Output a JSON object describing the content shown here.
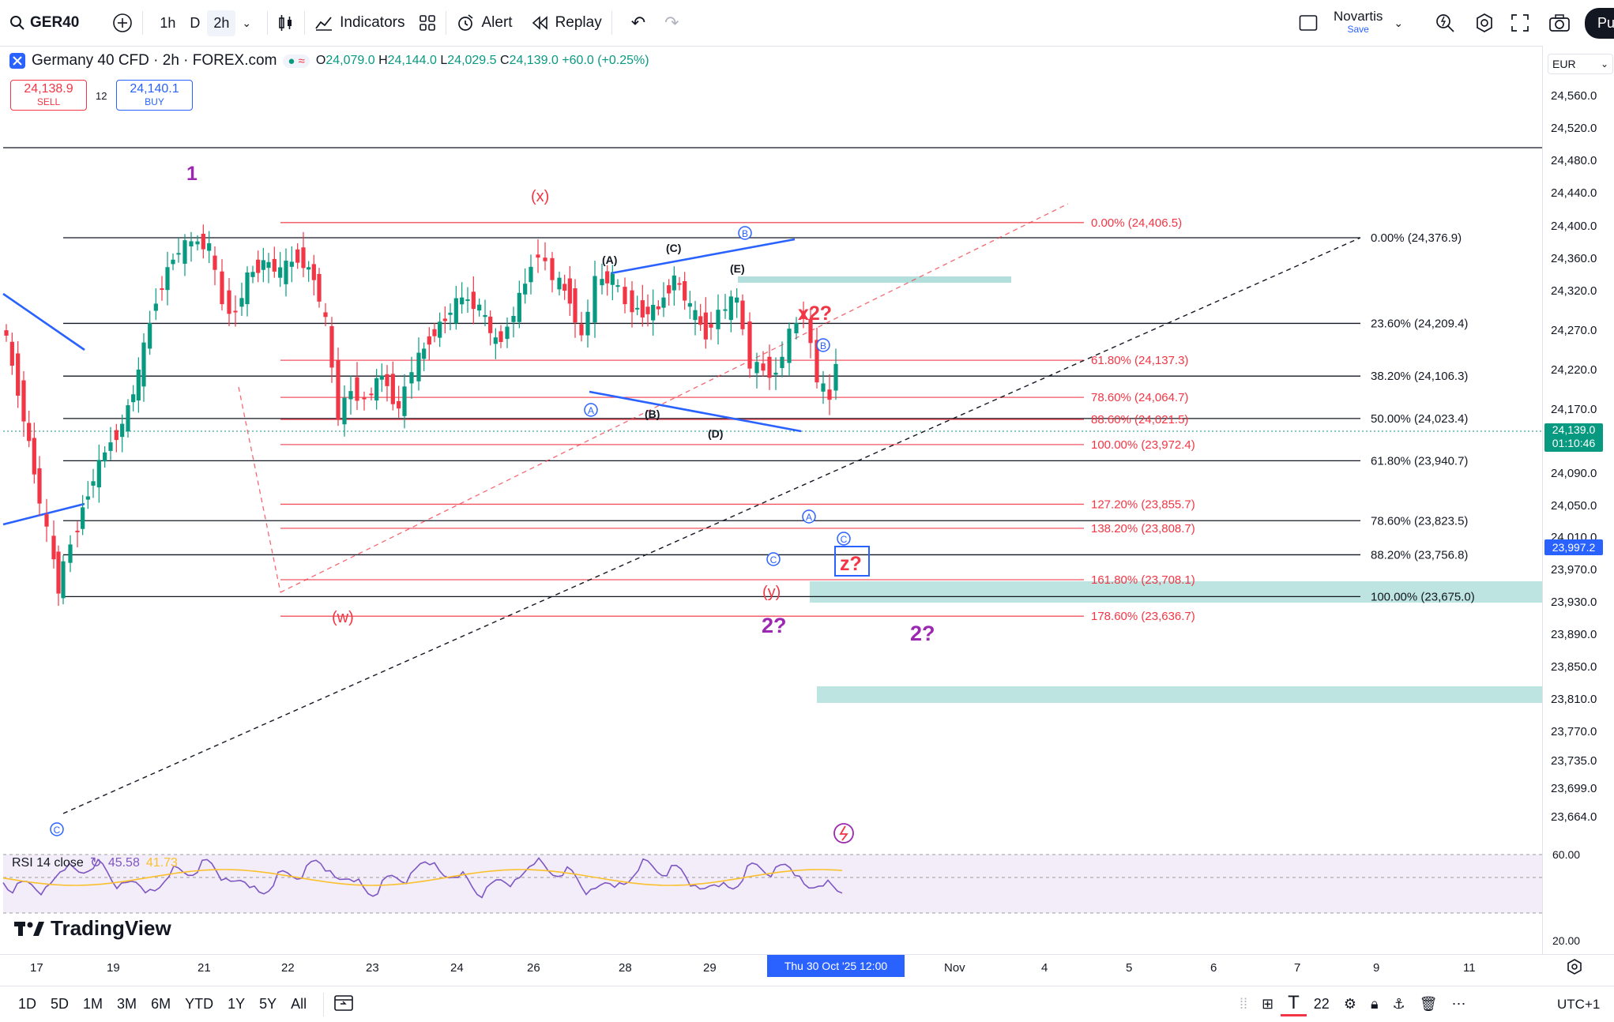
{
  "toolbar": {
    "symbol": "GER40",
    "intervals": [
      "1h",
      "D",
      "2h"
    ],
    "active_interval": "2h",
    "indicators_label": "Indicators",
    "alert_label": "Alert",
    "replay_label": "Replay",
    "layout_name": "Novartis",
    "layout_save": "Save",
    "publish_label": "Pu"
  },
  "legend": {
    "title": "Germany 40 CFD · 2h · FOREX.com",
    "ohlc": {
      "o_label": "O",
      "o": "24,079.0",
      "h_label": "H",
      "h": "24,144.0",
      "l_label": "L",
      "l": "24,029.5",
      "c_label": "C",
      "c": "24,139.0",
      "change": "+60.0 (+0.25%)"
    },
    "sell_price": "24,138.9",
    "sell_label": "SELL",
    "spread": "12",
    "buy_price": "24,140.1",
    "buy_label": "BUY"
  },
  "currency": "EUR",
  "price_axis": [
    "24,560.0",
    "24,520.0",
    "24,480.0",
    "24,440.0",
    "24,400.0",
    "24,360.0",
    "24,320.0",
    "24,270.0",
    "24,220.0",
    "24,170.0",
    "24,090.0",
    "24,050.0",
    "24,010.0",
    "23,970.0",
    "23,930.0",
    "23,890.0",
    "23,850.0",
    "23,810.0",
    "23,770.0",
    "23,735.0",
    "23,699.0",
    "23,664.0"
  ],
  "current_price": "24,139.0",
  "countdown": "01:10:46",
  "marker_price": "23,997.2",
  "fib_black": [
    {
      "label": "0.00% (24,376.9)",
      "price": 24376.9
    },
    {
      "label": "23.60% (24,209.4)",
      "price": 24209.4
    },
    {
      "label": "38.20% (24,106.3)",
      "price": 24106.3
    },
    {
      "label": "50.00% (24,023.4)",
      "price": 24023.4
    },
    {
      "label": "61.80% (23,940.7)",
      "price": 23940.7
    },
    {
      "label": "78.60% (23,823.5)",
      "price": 23823.5
    },
    {
      "label": "88.20% (23,756.8)",
      "price": 23756.8
    },
    {
      "label": "100.00% (23,675.0)",
      "price": 23675.0
    }
  ],
  "fib_red": [
    {
      "label": "0.00% (24,406.5)",
      "price": 24406.5
    },
    {
      "label": "61.80% (24,137.3)",
      "price": 24137.3
    },
    {
      "label": "78.60% (24,064.7)",
      "price": 24064.7
    },
    {
      "label": "88.60% (24,021.5)",
      "price": 24021.5
    },
    {
      "label": "100.00% (23,972.4)",
      "price": 23972.4
    },
    {
      "label": "127.20% (23,855.7)",
      "price": 23855.7
    },
    {
      "label": "138.20% (23,808.7)",
      "price": 23808.7
    },
    {
      "label": "161.80% (23,708.1)",
      "price": 23708.1
    },
    {
      "label": "178.60% (23,636.7)",
      "price": 23636.7
    }
  ],
  "wave_labels": {
    "w1": "1",
    "x": "(x)",
    "w": "(w)",
    "y": "(y)",
    "x2": "x2?",
    "z": "z?",
    "two_a": "2?",
    "two_b": "2?",
    "A": "(A)",
    "B": "(B)",
    "C": "(C)",
    "D": "(D)",
    "E": "(E)",
    "circ_a": "A",
    "circ_b": "B",
    "circ_c": "C"
  },
  "rsi": {
    "label": "RSI 14 close",
    "value1": "45.58",
    "value2": "41.73",
    "axis_high": "60.00",
    "axis_low": "20.00"
  },
  "brand": "TradingView",
  "time_axis": [
    "17",
    "19",
    "21",
    "22",
    "23",
    "24",
    "26",
    "28",
    "29",
    "Nov",
    "4",
    "5",
    "6",
    "7",
    "9",
    "11"
  ],
  "time_highlight": "Thu 30 Oct '25   12:00",
  "ranges": [
    "1D",
    "5D",
    "1M",
    "3M",
    "6M",
    "YTD",
    "1Y",
    "5Y",
    "All"
  ],
  "bottom_right": {
    "count": "22",
    "timezone": "UTC+1"
  },
  "colors": {
    "up": "#089981",
    "down": "#f23645",
    "accent": "#2962ff",
    "fib_red": "#f23645",
    "purple": "#9c27b0",
    "zone": "#b2dfdb"
  }
}
